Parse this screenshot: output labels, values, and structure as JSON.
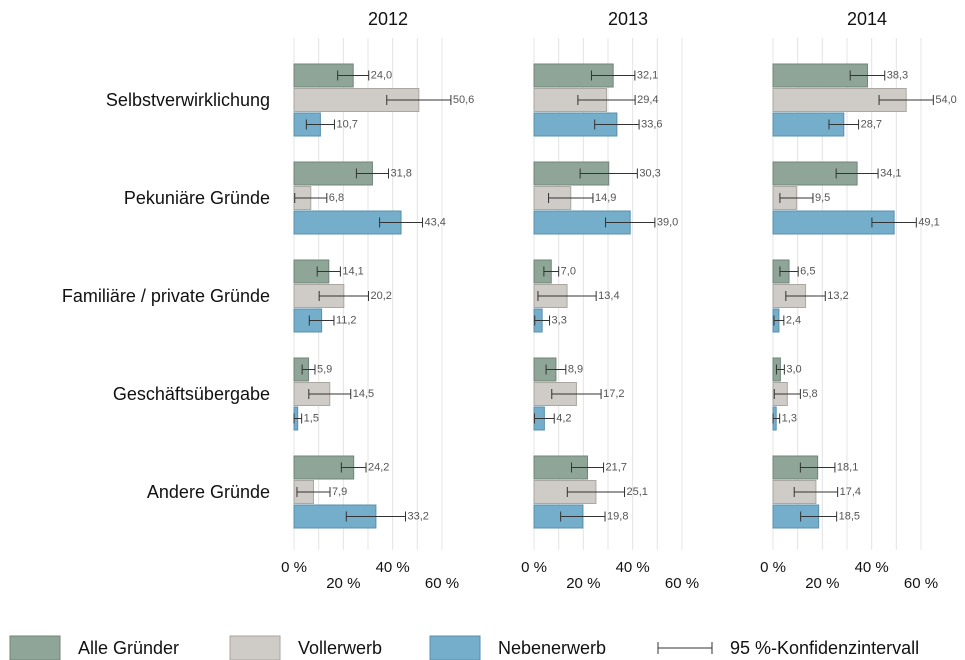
{
  "chart_data": [
    {
      "type": "bar",
      "orientation": "horizontal",
      "title": "2012",
      "categories": [
        "Selbstverwirklichung",
        "Pekuniäre Gründe",
        "Familiäre / private Gründe",
        "Geschäftsübergabe",
        "Andere Gründe"
      ],
      "series": [
        {
          "name": "Alle Gründer",
          "color": "#8fa597",
          "values": [
            24.0,
            31.8,
            14.1,
            5.9,
            24.2
          ],
          "value_labels": [
            "24,0",
            "31,8",
            "14,1",
            "5,9",
            "24,2"
          ],
          "errors": [
            6.3,
            6.5,
            4.7,
            2.6,
            5
          ]
        },
        {
          "name": "Vollerwerb",
          "color": "#cfcbc6",
          "values": [
            50.6,
            6.8,
            20.2,
            14.5,
            7.9
          ],
          "value_labels": [
            "50,6",
            "6,8",
            "20,2",
            "14,5",
            "7,9"
          ],
          "errors": [
            13,
            6.5,
            10,
            8.5,
            6.7
          ]
        },
        {
          "name": "Nebenerwerb",
          "color": "#74aecb",
          "values": [
            10.7,
            43.4,
            11.2,
            1.5,
            33.2
          ],
          "value_labels": [
            "10,7",
            "43,4",
            "11,2",
            "1,5",
            "33,2"
          ],
          "errors": [
            5.7,
            8.7,
            5,
            1.6,
            12
          ]
        }
      ],
      "error_label": "95 %-Konfidenzintervall",
      "xlim": [
        0,
        60
      ],
      "xticks": [
        {
          "value": 0,
          "label": "0 %"
        },
        {
          "value": 20,
          "label": "20 %"
        },
        {
          "value": 40,
          "label": "40 %"
        },
        {
          "value": 60,
          "label": "60 %"
        }
      ],
      "minor_xticks": [
        10,
        30,
        50
      ],
      "grid": true
    },
    {
      "type": "bar",
      "orientation": "horizontal",
      "title": "2013",
      "series": [
        {
          "values": [
            32.1,
            30.3,
            7.0,
            8.9,
            21.7
          ],
          "value_labels": [
            "32,1",
            "30,3",
            "7,0",
            "8,9",
            "21,7"
          ],
          "errors": [
            8.8,
            11.6,
            3,
            4,
            6.5
          ]
        },
        {
          "values": [
            29.4,
            14.9,
            13.4,
            17.2,
            25.1
          ],
          "value_labels": [
            "29,4",
            "14,9",
            "13,4",
            "17,2",
            "25,1"
          ],
          "errors": [
            11.6,
            9,
            11.8,
            10,
            11.6
          ]
        },
        {
          "values": [
            33.6,
            39.0,
            3.3,
            4.2,
            19.8
          ],
          "value_labels": [
            "33,6",
            "39,0",
            "3,3",
            "4,2",
            "19,8"
          ],
          "errors": [
            9,
            10,
            3,
            4,
            9
          ]
        }
      ],
      "xlim": [
        0,
        60
      ],
      "xticks": [
        {
          "value": 0,
          "label": "0 %"
        },
        {
          "value": 20,
          "label": "20 %"
        },
        {
          "value": 40,
          "label": "40 %"
        },
        {
          "value": 60,
          "label": "60 %"
        }
      ],
      "minor_xticks": [
        10,
        30,
        50
      ],
      "grid": true
    },
    {
      "type": "bar",
      "orientation": "horizontal",
      "title": "2014",
      "series": [
        {
          "values": [
            38.3,
            34.1,
            6.5,
            3.0,
            18.1
          ],
          "value_labels": [
            "38,3",
            "34,1",
            "6,5",
            "3,0",
            "18,1"
          ],
          "errors": [
            7,
            8.5,
            3.7,
            1.6,
            7
          ]
        },
        {
          "values": [
            54.0,
            9.5,
            13.2,
            5.8,
            17.4
          ],
          "value_labels": [
            "54,0",
            "9,5",
            "13,2",
            "5,8",
            "17,4"
          ],
          "errors": [
            11,
            6.7,
            8,
            5.3,
            8.8
          ]
        },
        {
          "values": [
            28.7,
            49.1,
            2.4,
            1.3,
            18.5
          ],
          "value_labels": [
            "28,7",
            "49,1",
            "2,4",
            "1,3",
            "18,5"
          ],
          "errors": [
            6,
            9,
            2,
            1.4,
            7.3
          ]
        }
      ],
      "xlim": [
        0,
        60
      ],
      "xticks": [
        {
          "value": 0,
          "label": "0 %"
        },
        {
          "value": 20,
          "label": "20 %"
        },
        {
          "value": 40,
          "label": "40 %"
        },
        {
          "value": 60,
          "label": "60 %"
        }
      ],
      "minor_xticks": [
        10,
        30,
        50
      ],
      "grid": true
    }
  ]
}
